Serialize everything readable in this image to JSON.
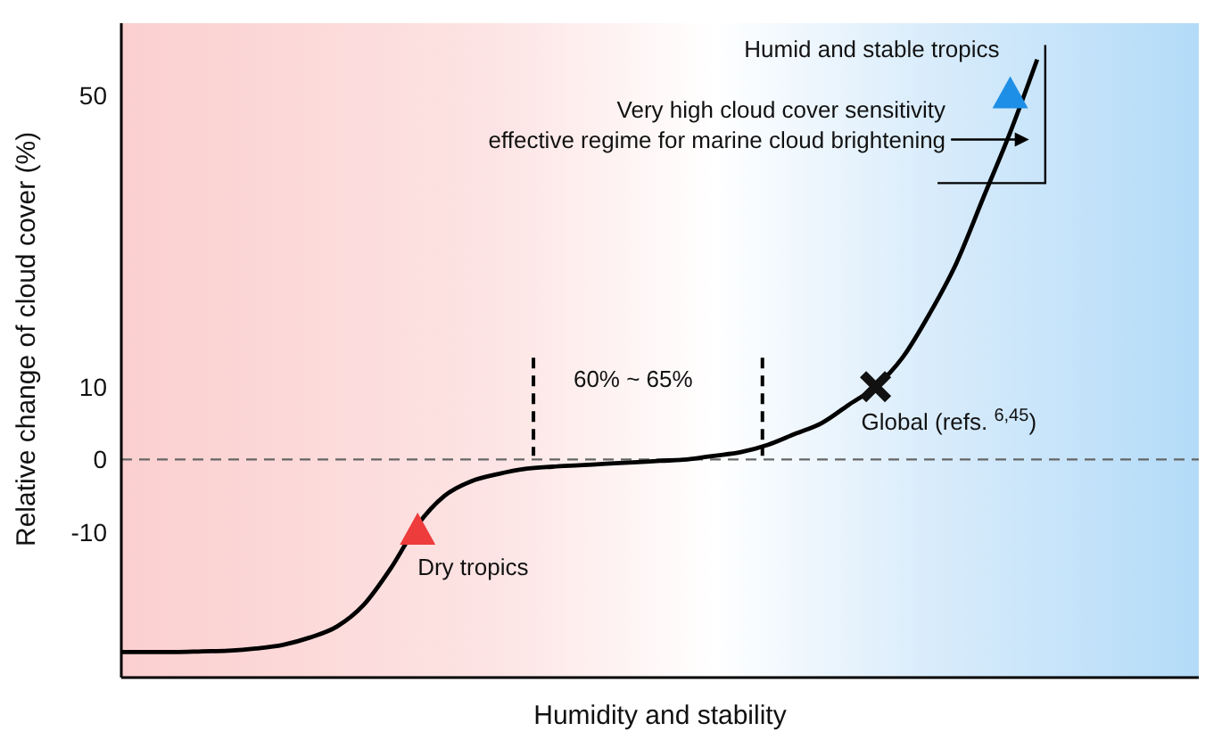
{
  "chart_data": {
    "type": "line",
    "xlabel": "Humidity and stability",
    "ylabel": "Relative change of cloud cover (%)",
    "categories": [
      null,
      null,
      null,
      null,
      null,
      null,
      null,
      null,
      null,
      null,
      null,
      null,
      null,
      null,
      null,
      null,
      null,
      null,
      null,
      null,
      null,
      null,
      null,
      null,
      null,
      null,
      null,
      null,
      null,
      null,
      null,
      null,
      null,
      null,
      null,
      null,
      null,
      null,
      null,
      null,
      null
    ],
    "series": [
      {
        "color": "#000000",
        "marker": "none",
        "values": [
          -26.5,
          -26.5,
          -26.5,
          -26.4,
          -26.3,
          -26,
          -25.5,
          -24.5,
          -23,
          -20,
          -15,
          -9,
          -5,
          -3,
          -2,
          -1.3,
          -1,
          -0.8,
          -0.6,
          -0.4,
          -0.2,
          0,
          0.5,
          1,
          2,
          3.5,
          5,
          7.5,
          10,
          14,
          20,
          27,
          36,
          45,
          55,
          null,
          null,
          null,
          null,
          null,
          null
        ]
      },
      {
        "type": "scatter",
        "color": "#ee3b3b",
        "marker": "triangle",
        "values": [
          null,
          null,
          null,
          null,
          null,
          null,
          null,
          null,
          null,
          null,
          null,
          -10,
          null,
          null,
          null,
          null,
          null,
          null,
          null,
          null,
          null,
          null,
          null,
          null,
          null,
          null,
          null,
          null,
          null,
          null,
          null,
          null,
          null,
          null,
          null,
          null,
          null,
          null,
          null,
          null,
          null
        ]
      },
      {
        "type": "scatter",
        "color": "#111111",
        "marker": "cross",
        "values": [
          null,
          null,
          null,
          null,
          null,
          null,
          null,
          null,
          null,
          null,
          null,
          null,
          null,
          null,
          null,
          null,
          null,
          null,
          null,
          null,
          null,
          null,
          null,
          null,
          null,
          null,
          null,
          null,
          10,
          null,
          null,
          null,
          null,
          null,
          null,
          null,
          null,
          null,
          null,
          null,
          null
        ]
      },
      {
        "type": "scatter",
        "color": "#1e8fe6",
        "marker": "triangle",
        "values": [
          null,
          null,
          null,
          null,
          null,
          null,
          null,
          null,
          null,
          null,
          null,
          null,
          null,
          null,
          null,
          null,
          null,
          null,
          null,
          null,
          null,
          null,
          null,
          null,
          null,
          null,
          null,
          null,
          null,
          null,
          null,
          null,
          null,
          50,
          null,
          null,
          null,
          null,
          null,
          null,
          null
        ]
      }
    ],
    "ylim": [
      -30,
      60
    ],
    "yticks": [
      -10,
      0,
      10,
      50
    ],
    "tick_labels": "y",
    "grid": false,
    "ref_lines": [
      {
        "axis": "y",
        "value": 0,
        "color": "#666666",
        "line_style": "dashed"
      }
    ],
    "annotations": [
      "Humid and stable tropics",
      "Very high cloud cover sensitivity\neffective regime for marine cloud brightening",
      "60% ~ 65%",
      "Global (refs. $^{6,45}$)",
      "Dry tropics"
    ]
  }
}
